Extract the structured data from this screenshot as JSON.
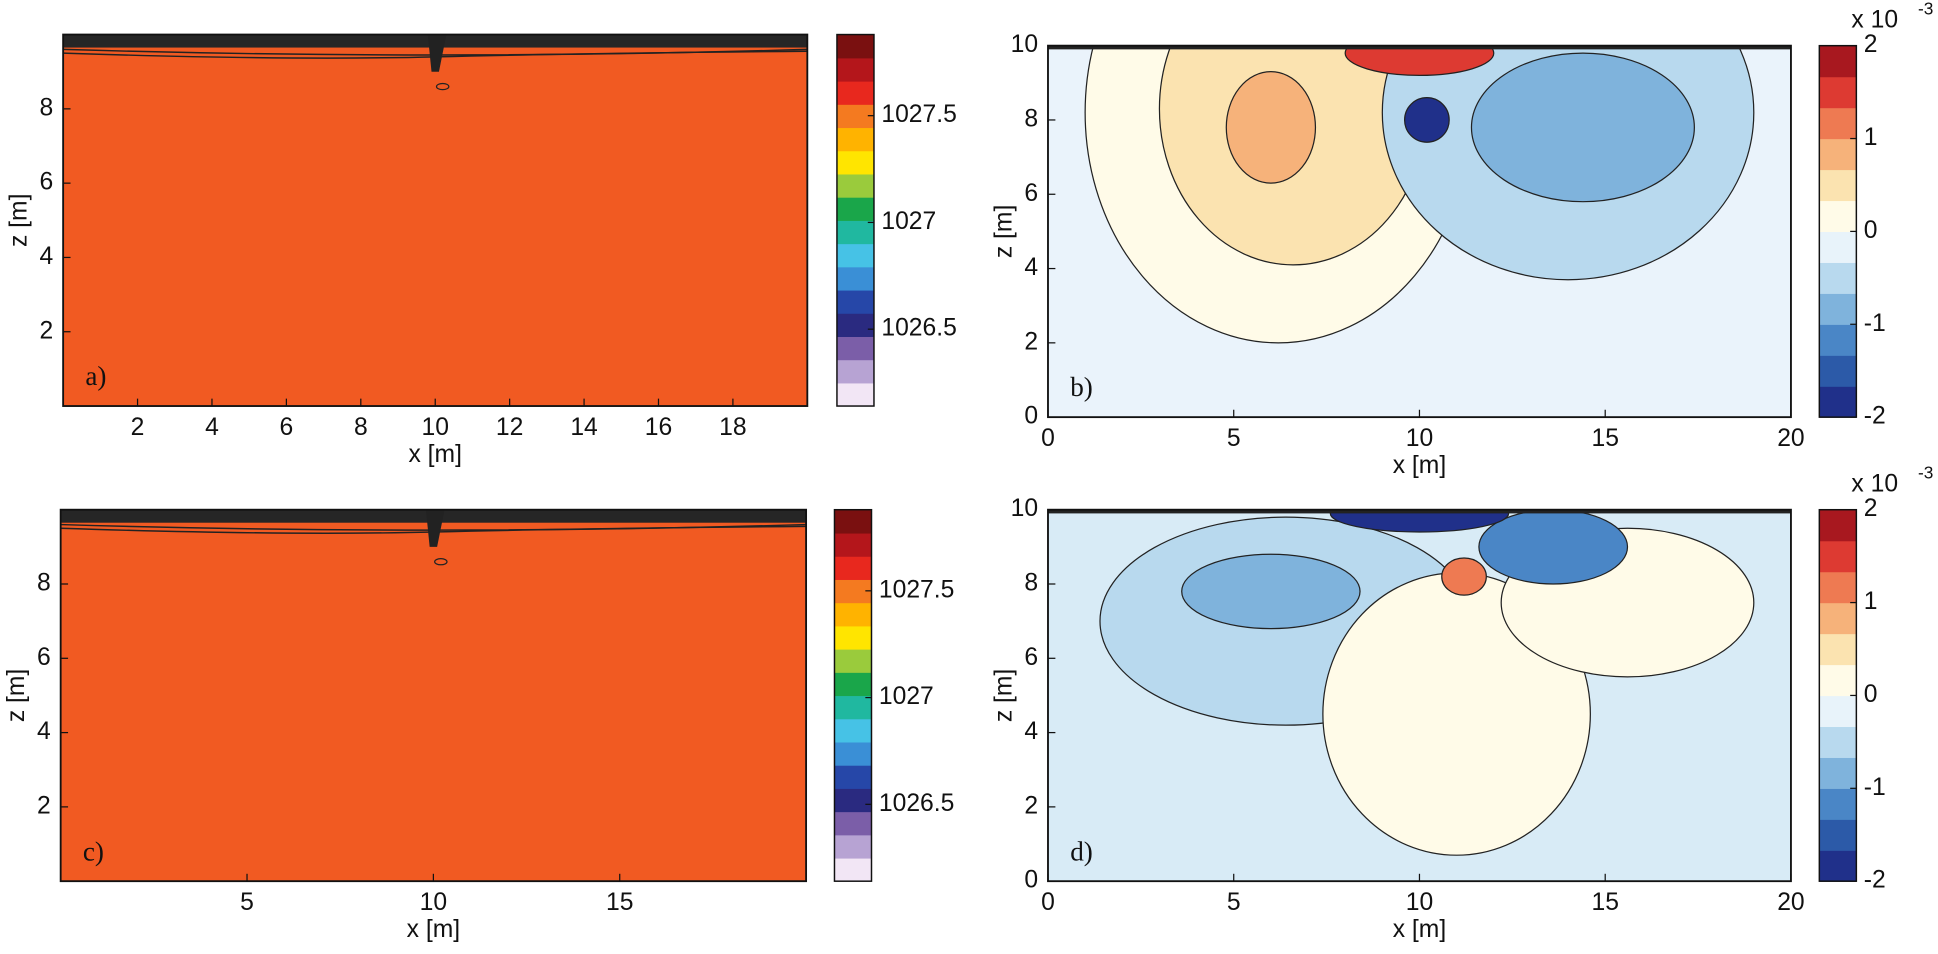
{
  "chart_data": [
    {
      "type": "contour",
      "panel_label": "a)",
      "xlabel": "x [m]",
      "ylabel": "z [m]",
      "xlim": [
        0,
        20
      ],
      "ylim": [
        0,
        10
      ],
      "xticks": [
        2,
        4,
        6,
        8,
        10,
        12,
        14,
        16,
        18
      ],
      "yticks": [
        2,
        4,
        6,
        8
      ],
      "fill_color": "#f15a22",
      "colormap": [
        "#f2e6f5",
        "#b7a3d3",
        "#7b5ea8",
        "#2a2a80",
        "#2647a8",
        "#3a8fd6",
        "#46c2e6",
        "#20b8a0",
        "#1aa64a",
        "#9acb3c",
        "#ffe500",
        "#ffb300",
        "#f47a20",
        "#e8281e",
        "#b4161b",
        "#7a1010"
      ],
      "clim": [
        1026.14,
        1027.88
      ],
      "cticks": [
        1026.5,
        1027,
        1027.5
      ]
    },
    {
      "type": "contour",
      "panel_label": "b)",
      "xlabel": "x [m]",
      "ylabel": "z [m]",
      "xlim": [
        0,
        20
      ],
      "ylim": [
        0,
        10
      ],
      "xticks": [
        0,
        5,
        10,
        15,
        20
      ],
      "yticks": [
        0,
        2,
        4,
        6,
        8,
        10
      ],
      "fill_color": "#eaf3fb",
      "colormap": [
        "#20308a",
        "#2c5aa8",
        "#4a86c6",
        "#7fb3dc",
        "#b8d9ee",
        "#e8f3fa",
        "#fffbe8",
        "#fbe3b0",
        "#f6b27a",
        "#ee7a52",
        "#dd3a32",
        "#a8181f"
      ],
      "clim": [
        -2,
        2
      ],
      "cticks": [
        -2,
        -1,
        0,
        1,
        2
      ],
      "cscale_label": "x 10",
      "cscale_exponent": "-3"
    },
    {
      "type": "contour",
      "panel_label": "c)",
      "xlabel": "x [m]",
      "ylabel": "z [m]",
      "xlim": [
        0,
        20
      ],
      "ylim": [
        0,
        10
      ],
      "xticks": [
        5,
        10,
        15
      ],
      "yticks": [
        2,
        4,
        6,
        8
      ],
      "fill_color": "#f15a22",
      "colormap": [
        "#f2e6f5",
        "#b7a3d3",
        "#7b5ea8",
        "#2a2a80",
        "#2647a8",
        "#3a8fd6",
        "#46c2e6",
        "#20b8a0",
        "#1aa64a",
        "#9acb3c",
        "#ffe500",
        "#ffb300",
        "#f47a20",
        "#e8281e",
        "#b4161b",
        "#7a1010"
      ],
      "clim": [
        1026.14,
        1027.88
      ],
      "cticks": [
        1026.5,
        1027,
        1027.5
      ]
    },
    {
      "type": "contour",
      "panel_label": "d)",
      "xlabel": "x [m]",
      "ylabel": "z [m]",
      "xlim": [
        0,
        20
      ],
      "ylim": [
        0,
        10
      ],
      "xticks": [
        0,
        5,
        10,
        15,
        20
      ],
      "yticks": [
        0,
        2,
        4,
        6,
        8,
        10
      ],
      "fill_color": "#d8ebf6",
      "colormap": [
        "#20308a",
        "#2c5aa8",
        "#4a86c6",
        "#7fb3dc",
        "#b8d9ee",
        "#e8f3fa",
        "#fffbe8",
        "#fbe3b0",
        "#f6b27a",
        "#ee7a52",
        "#dd3a32",
        "#a8181f"
      ],
      "clim": [
        -2,
        2
      ],
      "cticks": [
        -2,
        -1,
        0,
        1,
        2
      ],
      "cscale_label": "x 10",
      "cscale_exponent": "-3"
    }
  ]
}
